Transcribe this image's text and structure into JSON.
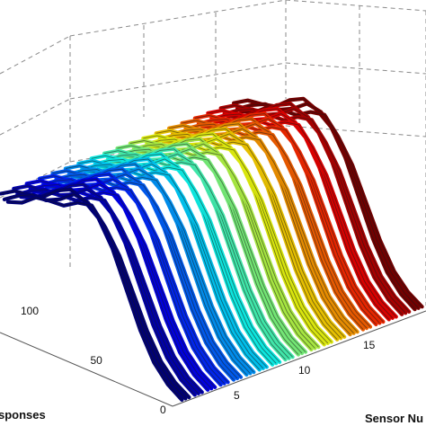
{
  "chart_data": {
    "type": "line",
    "projection": "3d-waterfall",
    "title": "",
    "xlabel": "Sensor Nu",
    "ylabel": "sponses",
    "zlabel": "",
    "x_ticks": [
      "5",
      "10",
      "15"
    ],
    "y_ticks": [
      "0",
      "50",
      "100"
    ],
    "xlim": [
      0,
      20
    ],
    "ylim": [
      0,
      130
    ],
    "grid": true,
    "colormap": "jet",
    "sensors": [
      1,
      2,
      3,
      4,
      5,
      6,
      7,
      8,
      9,
      10,
      11,
      12,
      13,
      14,
      15,
      16,
      17,
      18,
      19
    ],
    "samples": [
      0,
      10,
      20,
      30,
      40,
      50,
      60,
      70,
      80,
      90,
      100,
      110,
      120,
      130
    ],
    "response_profile": [
      0.02,
      0.06,
      0.15,
      0.32,
      0.55,
      0.78,
      0.93,
      1.0,
      0.97,
      0.9,
      0.82,
      0.74,
      0.66,
      0.6
    ]
  }
}
